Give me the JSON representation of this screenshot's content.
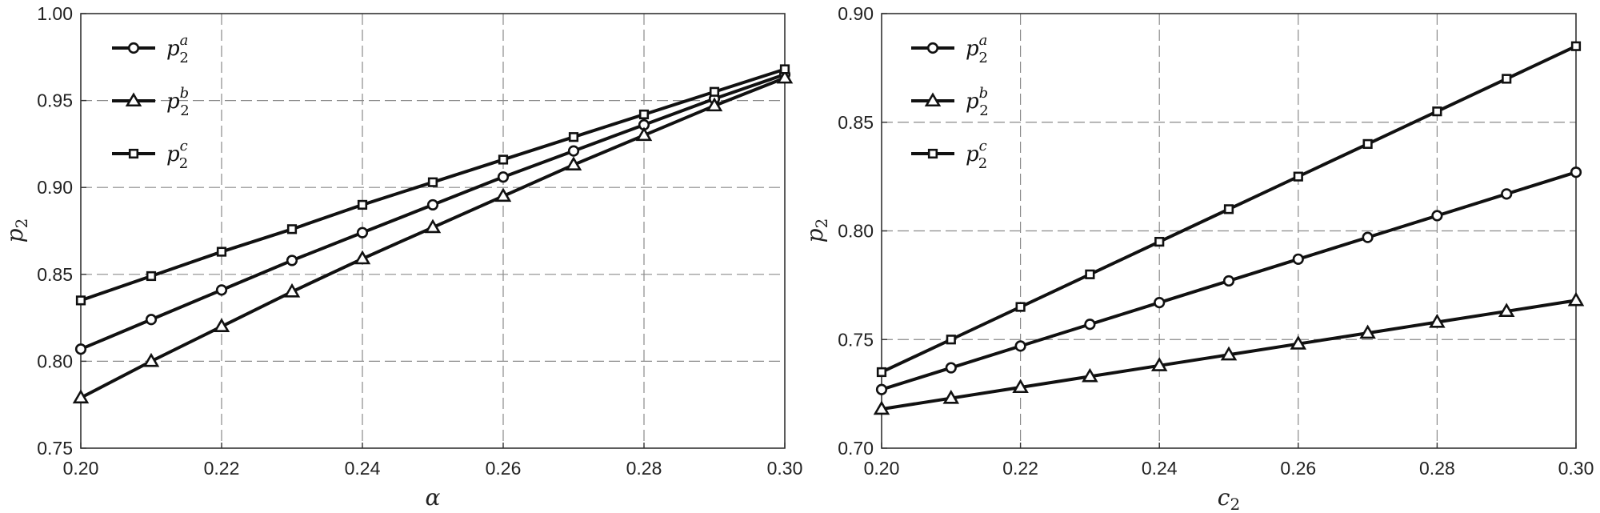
{
  "chart_data": [
    {
      "type": "line",
      "xlabel": "α",
      "ylabel": "p2",
      "xlim": [
        0.2,
        0.3
      ],
      "ylim": [
        0.75,
        1.0
      ],
      "x_ticks": [
        "0.20",
        "0.22",
        "0.24",
        "0.26",
        "0.28",
        "0.30"
      ],
      "y_ticks": [
        "0.75",
        "0.80",
        "0.85",
        "0.90",
        "0.95",
        "1.00"
      ],
      "grid": true,
      "legend_position": "top-left",
      "x": [
        0.2,
        0.21,
        0.22,
        0.23,
        0.24,
        0.25,
        0.26,
        0.27,
        0.28,
        0.29,
        0.3
      ],
      "series": [
        {
          "name": "p2^a",
          "base": "p",
          "sub": "2",
          "sup": "a",
          "marker": "circle",
          "values": [
            0.807,
            0.824,
            0.841,
            0.858,
            0.874,
            0.89,
            0.906,
            0.921,
            0.936,
            0.951,
            0.965
          ]
        },
        {
          "name": "p2^b",
          "base": "p",
          "sub": "2",
          "sup": "b",
          "marker": "triangle",
          "values": [
            0.779,
            0.8,
            0.82,
            0.84,
            0.859,
            0.877,
            0.895,
            0.913,
            0.93,
            0.947,
            0.963
          ]
        },
        {
          "name": "p2^c",
          "base": "p",
          "sub": "2",
          "sup": "c",
          "marker": "square",
          "values": [
            0.835,
            0.849,
            0.863,
            0.876,
            0.89,
            0.903,
            0.916,
            0.929,
            0.942,
            0.955,
            0.968
          ]
        }
      ]
    },
    {
      "type": "line",
      "xlabel": "c2",
      "ylabel": "p2",
      "xlim": [
        0.2,
        0.3
      ],
      "ylim": [
        0.7,
        0.9
      ],
      "x_ticks": [
        "0.20",
        "0.22",
        "0.24",
        "0.26",
        "0.28",
        "0.30"
      ],
      "y_ticks": [
        "0.70",
        "0.75",
        "0.80",
        "0.85",
        "0.90"
      ],
      "grid": true,
      "legend_position": "top-left",
      "x": [
        0.2,
        0.21,
        0.22,
        0.23,
        0.24,
        0.25,
        0.26,
        0.27,
        0.28,
        0.29,
        0.3
      ],
      "series": [
        {
          "name": "p2^a",
          "base": "p",
          "sub": "2",
          "sup": "a",
          "marker": "circle",
          "values": [
            0.727,
            0.737,
            0.747,
            0.757,
            0.767,
            0.777,
            0.787,
            0.797,
            0.807,
            0.817,
            0.827
          ]
        },
        {
          "name": "p2^b",
          "base": "p",
          "sub": "2",
          "sup": "b",
          "marker": "triangle",
          "values": [
            0.718,
            0.723,
            0.728,
            0.733,
            0.738,
            0.743,
            0.748,
            0.753,
            0.758,
            0.763,
            0.768
          ]
        },
        {
          "name": "p2^c",
          "base": "p",
          "sub": "2",
          "sup": "c",
          "marker": "square",
          "values": [
            0.735,
            0.75,
            0.765,
            0.78,
            0.795,
            0.81,
            0.825,
            0.84,
            0.855,
            0.87,
            0.885
          ]
        }
      ]
    }
  ]
}
